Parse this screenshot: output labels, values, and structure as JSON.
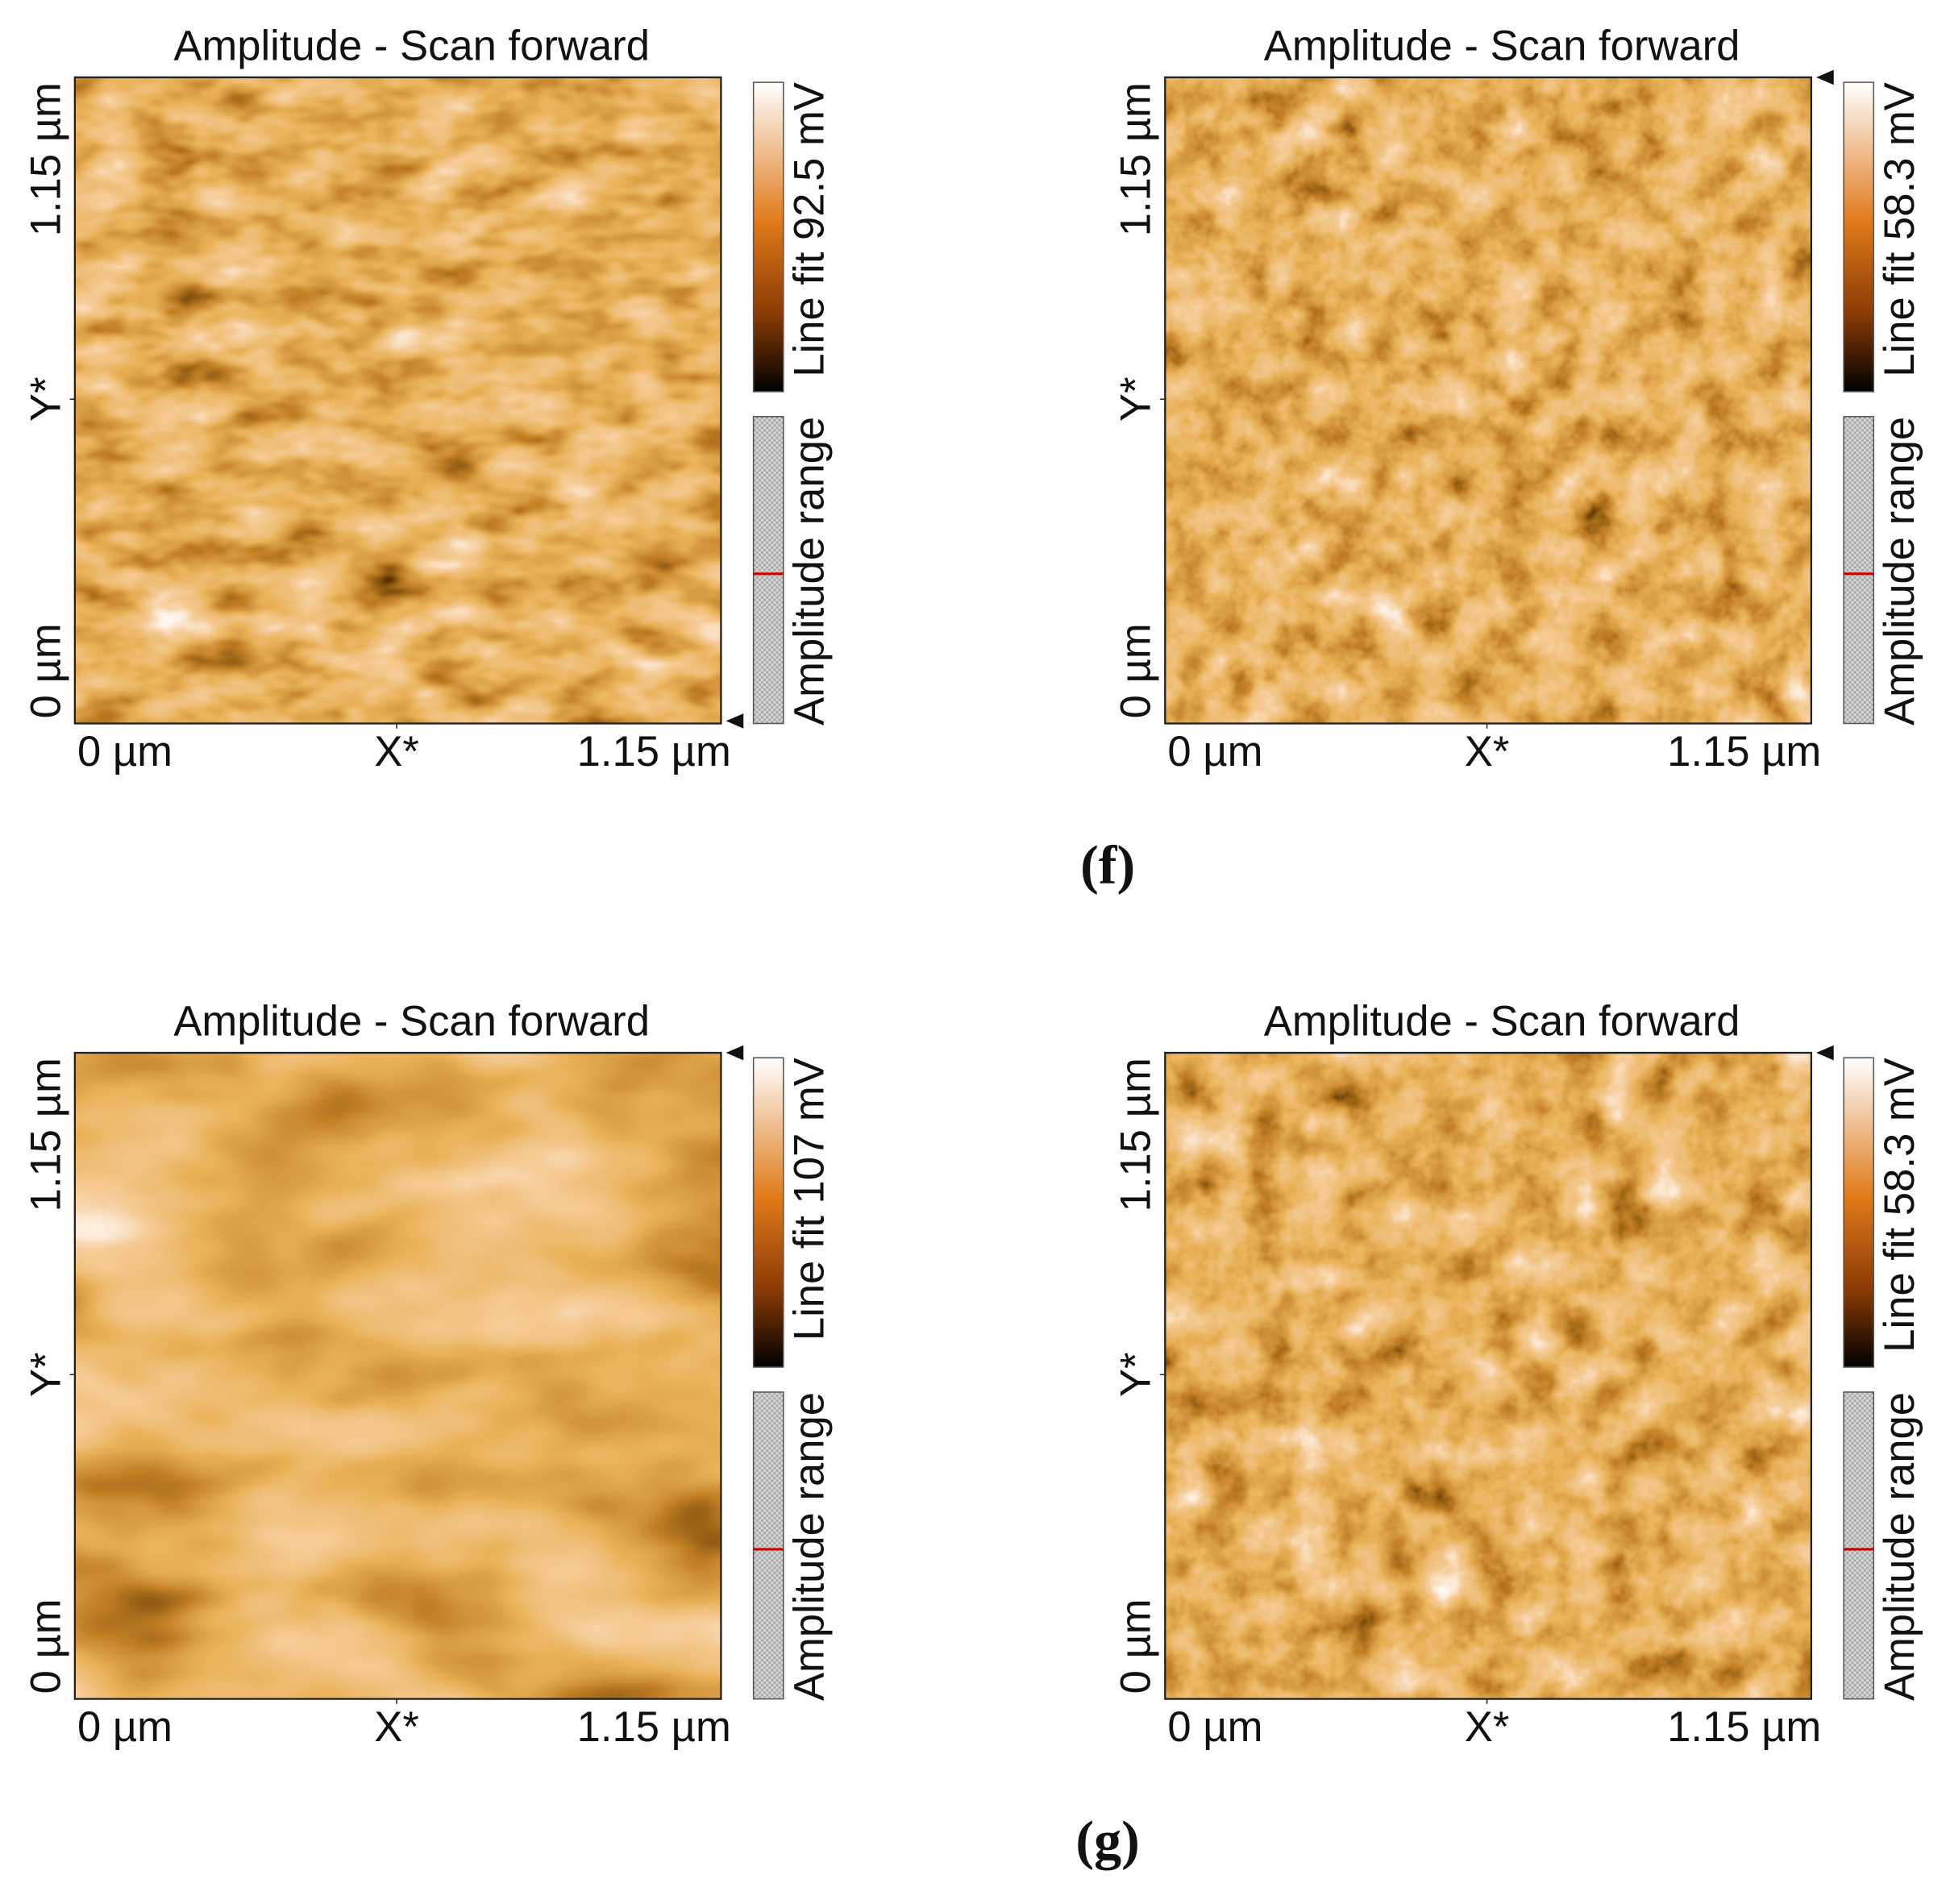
{
  "panels": [
    {
      "title": "Amplitude - Scan forward",
      "x_labels": [
        "0 µm",
        "X*",
        "1.15 µm"
      ],
      "y_labels": [
        "0 µm",
        "Y*",
        "1.15 µm"
      ],
      "colorbar_label": "Line fit 92.5 mV",
      "range_label": "Amplitude range"
    },
    {
      "title": "Amplitude - Scan forward",
      "x_labels": [
        "0 µm",
        "X*",
        "1.15 µm"
      ],
      "y_labels": [
        "0 µm",
        "Y*",
        "1.15 µm"
      ],
      "colorbar_label": "Line fit 58.3 mV",
      "range_label": "Amplitude range"
    },
    {
      "title": "Amplitude - Scan forward",
      "x_labels": [
        "0 µm",
        "X*",
        "1.15 µm"
      ],
      "y_labels": [
        "0 µm",
        "Y*",
        "1.15 µm"
      ],
      "colorbar_label": "Line fit 107 mV",
      "range_label": "Amplitude range"
    },
    {
      "title": "Amplitude - Scan forward",
      "x_labels": [
        "0 µm",
        "X*",
        "1.15 µm"
      ],
      "y_labels": [
        "0 µm",
        "Y*",
        "1.15 µm"
      ],
      "colorbar_label": "Line fit 58.3 mV",
      "range_label": "Amplitude range"
    }
  ],
  "captions": [
    "(f)",
    "(g)"
  ]
}
